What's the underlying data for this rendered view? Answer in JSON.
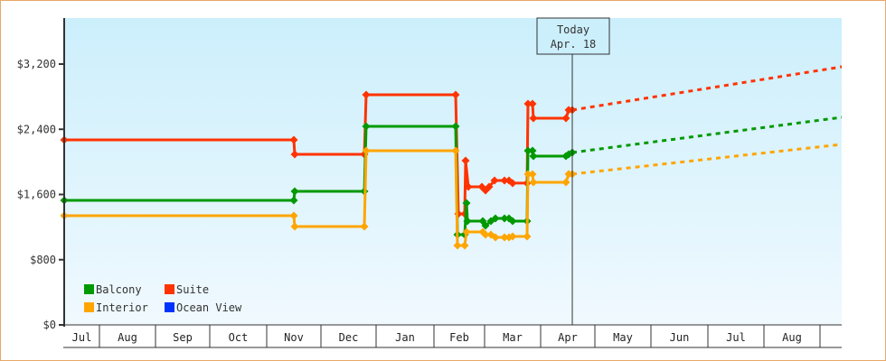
{
  "chart_data": {
    "type": "line",
    "title": "",
    "xlabel": "",
    "ylabel": "",
    "ylim": [
      0,
      3200
    ],
    "y_ticks": [
      {
        "value": 0,
        "label": "$0"
      },
      {
        "value": 800,
        "label": "$800"
      },
      {
        "value": 1600,
        "label": "$1,600"
      },
      {
        "value": 2400,
        "label": "$2,400"
      },
      {
        "value": 3200,
        "label": "$3,200"
      }
    ],
    "x_months": [
      "Jul",
      "Aug",
      "Sep",
      "Oct",
      "Nov",
      "Dec",
      "Jan",
      "Feb",
      "Mar",
      "Apr",
      "May",
      "Jun",
      "Jul",
      "Aug"
    ],
    "today_marker": {
      "line1": "Today",
      "line2": "Apr. 18"
    },
    "legend": [
      {
        "name": "Balcony",
        "color": "#009900"
      },
      {
        "name": "Suite",
        "color": "#ff3300"
      },
      {
        "name": "Interior",
        "color": "#ffa500"
      },
      {
        "name": "Ocean View",
        "color": "#0033ff"
      }
    ],
    "series": [
      {
        "name": "Suite",
        "color": "#ff3300",
        "history": [
          [
            71,
            2270
          ],
          [
            325,
            2270
          ],
          [
            326,
            2093
          ],
          [
            403,
            2093
          ],
          [
            405,
            2824
          ],
          [
            504,
            2824
          ],
          [
            507,
            1362
          ],
          [
            514,
            1362
          ],
          [
            515,
            2015
          ],
          [
            518,
            1694
          ],
          [
            533,
            1694
          ],
          [
            537,
            1650
          ],
          [
            541,
            1694
          ],
          [
            547,
            1772
          ],
          [
            558,
            1772
          ],
          [
            563,
            1772
          ],
          [
            567,
            1739
          ],
          [
            583,
            1739
          ],
          [
            584,
            2713
          ],
          [
            589,
            2713
          ],
          [
            590,
            2536
          ],
          [
            626,
            2536
          ],
          [
            629,
            2636
          ],
          [
            633,
            2636
          ]
        ],
        "forecast": [
          [
            633,
            2636
          ],
          [
            931,
            3167
          ]
        ]
      },
      {
        "name": "Balcony",
        "color": "#009900",
        "history": [
          [
            71,
            1528
          ],
          [
            325,
            1528
          ],
          [
            326,
            1639
          ],
          [
            403,
            1639
          ],
          [
            405,
            2436
          ],
          [
            504,
            2436
          ],
          [
            506,
            1107
          ],
          [
            514,
            1107
          ],
          [
            516,
            1495
          ],
          [
            517,
            1273
          ],
          [
            534,
            1273
          ],
          [
            537,
            1218
          ],
          [
            543,
            1273
          ],
          [
            548,
            1307
          ],
          [
            558,
            1307
          ],
          [
            563,
            1307
          ],
          [
            567,
            1273
          ],
          [
            583,
            1273
          ],
          [
            584,
            2137
          ],
          [
            589,
            2137
          ],
          [
            590,
            2071
          ],
          [
            626,
            2071
          ],
          [
            629,
            2093
          ],
          [
            633,
            2115
          ]
        ],
        "forecast": [
          [
            633,
            2115
          ],
          [
            931,
            2547
          ]
        ]
      },
      {
        "name": "Interior",
        "color": "#ffa500",
        "history": [
          [
            71,
            1340
          ],
          [
            325,
            1340
          ],
          [
            326,
            1207
          ],
          [
            403,
            1207
          ],
          [
            405,
            2137
          ],
          [
            504,
            2137
          ],
          [
            506,
            974
          ],
          [
            514,
            974
          ],
          [
            516,
            1140
          ],
          [
            534,
            1140
          ],
          [
            537,
            1107
          ],
          [
            543,
            1107
          ],
          [
            548,
            1074
          ],
          [
            558,
            1074
          ],
          [
            563,
            1074
          ],
          [
            567,
            1085
          ],
          [
            583,
            1085
          ],
          [
            584,
            1849
          ],
          [
            589,
            1849
          ],
          [
            590,
            1750
          ],
          [
            626,
            1750
          ],
          [
            629,
            1850
          ],
          [
            633,
            1850
          ]
        ],
        "forecast": [
          [
            633,
            1850
          ],
          [
            931,
            2214
          ]
        ]
      },
      {
        "name": "Ocean View",
        "color": "#0033ff",
        "history": [],
        "forecast": []
      }
    ]
  }
}
